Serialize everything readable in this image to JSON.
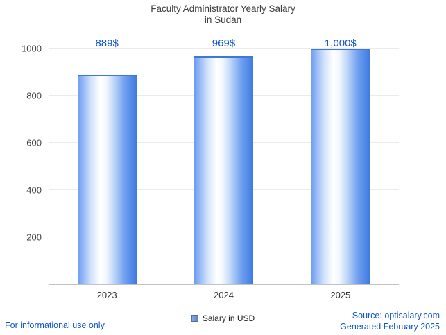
{
  "title": {
    "line1": "Faculty Administrator Yearly Salary",
    "line2": "in Sudan"
  },
  "chart_data": {
    "type": "bar",
    "title": "Faculty Administrator Yearly Salary in Sudan",
    "categories": [
      "2023",
      "2024",
      "2025"
    ],
    "series": [
      {
        "name": "Salary in USD",
        "values": [
          889,
          969,
          1000
        ]
      }
    ],
    "value_labels": [
      "889$",
      "969$",
      "1,000$"
    ],
    "ylim": [
      0,
      1000
    ],
    "yticks": [
      200,
      400,
      600,
      800,
      1000
    ],
    "grid": true,
    "legend": {
      "label": "Salary in USD",
      "position": "bottom"
    }
  },
  "footer": {
    "disclaimer": "For informational use only",
    "source": "Source: optisalary.com",
    "generated": "Generated February 2025"
  },
  "colors": {
    "accent_blue": "#1155cc",
    "bar_edge_blue": "#3e7be0",
    "bar_mid_white": "#ffffff",
    "gridline_gray": "#ebebeb",
    "axis_text_gray": "#404040",
    "title_gray": "#3c3c3c"
  }
}
